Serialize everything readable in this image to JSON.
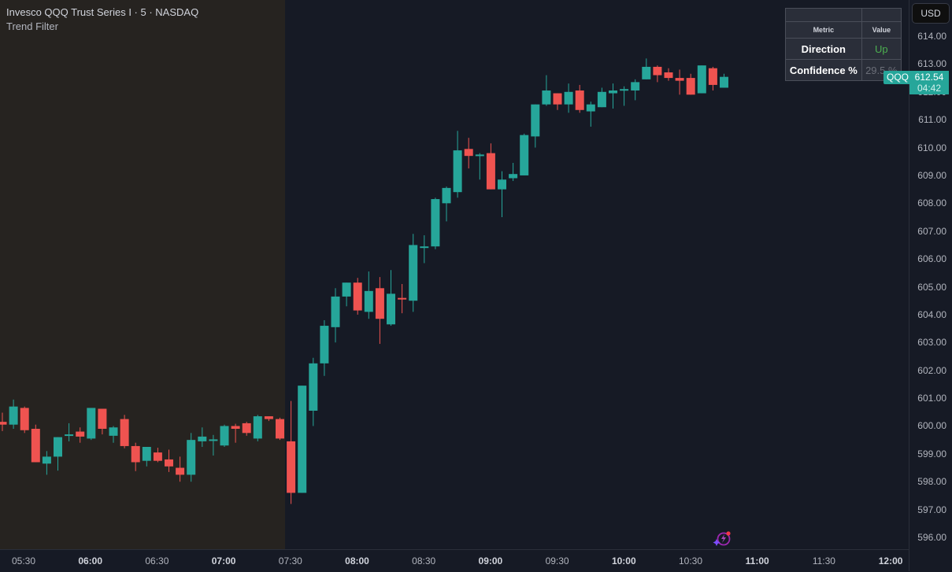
{
  "legend": {
    "title": "Invesco QQQ Trust Series I · 5 · NASDAQ",
    "indicator": "Trend Filter"
  },
  "currency_button": "USD",
  "metric_table": {
    "headers": [
      "Metric",
      "Value"
    ],
    "rows": [
      {
        "metric": "Direction",
        "value": "Up"
      },
      {
        "metric": "Confidence %",
        "value": "29.5 %"
      }
    ]
  },
  "price_tag": {
    "symbol": "QQQ",
    "price": "612.54",
    "countdown": "04:42"
  },
  "colors": {
    "up": "#26a69a",
    "down": "#ef5350",
    "background": "#161a25",
    "premarket": "#262320"
  },
  "icons": {
    "assistant": "ai-lightning-icon"
  },
  "chart_data": {
    "type": "candlestick",
    "title": "Invesco QQQ Trust Series I · 5 · NASDAQ",
    "xlabel": "",
    "ylabel": "USD",
    "ylim": [
      595.6,
      614.9
    ],
    "y_ticks": [
      "614.00",
      "613.00",
      "612.00",
      "611.00",
      "610.00",
      "609.00",
      "608.00",
      "607.00",
      "606.00",
      "605.00",
      "604.00",
      "603.00",
      "602.00",
      "601.00",
      "600.00",
      "599.00",
      "598.00",
      "597.00",
      "596.00"
    ],
    "x_ticks": [
      {
        "label": "05:30",
        "major": false
      },
      {
        "label": "06:00",
        "major": true
      },
      {
        "label": "06:30",
        "major": false
      },
      {
        "label": "07:00",
        "major": true
      },
      {
        "label": "07:30",
        "major": false
      },
      {
        "label": "08:00",
        "major": true
      },
      {
        "label": "08:30",
        "major": false
      },
      {
        "label": "09:00",
        "major": true
      },
      {
        "label": "09:30",
        "major": false
      },
      {
        "label": "10:00",
        "major": true
      },
      {
        "label": "10:30",
        "major": false
      },
      {
        "label": "11:00",
        "major": true
      },
      {
        "label": "11:30",
        "major": false
      },
      {
        "label": "12:00",
        "major": true
      }
    ],
    "grid": false,
    "premarket_shading_until": "07:30",
    "interval": "5m",
    "candles": [
      {
        "t": "05:25",
        "o": 600.15,
        "h": 600.48,
        "l": 599.82,
        "c": 600.05
      },
      {
        "t": "05:30",
        "o": 600.05,
        "h": 600.95,
        "l": 599.9,
        "c": 600.7
      },
      {
        "t": "05:35",
        "o": 600.65,
        "h": 600.7,
        "l": 599.75,
        "c": 599.85
      },
      {
        "t": "05:40",
        "o": 599.9,
        "h": 600.05,
        "l": 598.7,
        "c": 598.7
      },
      {
        "t": "05:45",
        "o": 598.65,
        "h": 599.1,
        "l": 598.25,
        "c": 598.9
      },
      {
        "t": "05:50",
        "o": 598.9,
        "h": 599.6,
        "l": 598.4,
        "c": 599.6
      },
      {
        "t": "05:55",
        "o": 599.65,
        "h": 600.1,
        "l": 599.45,
        "c": 599.7
      },
      {
        "t": "06:00",
        "o": 599.8,
        "h": 599.95,
        "l": 599.4,
        "c": 599.62
      },
      {
        "t": "06:05",
        "o": 599.55,
        "h": 600.65,
        "l": 599.5,
        "c": 600.65
      },
      {
        "t": "06:10",
        "o": 600.62,
        "h": 600.62,
        "l": 599.7,
        "c": 599.9
      },
      {
        "t": "06:15",
        "o": 599.65,
        "h": 600.0,
        "l": 599.4,
        "c": 599.95
      },
      {
        "t": "06:20",
        "o": 600.25,
        "h": 600.4,
        "l": 599.2,
        "c": 599.28
      },
      {
        "t": "06:25",
        "o": 599.28,
        "h": 599.4,
        "l": 598.38,
        "c": 598.7
      },
      {
        "t": "06:30",
        "o": 598.75,
        "h": 599.25,
        "l": 598.55,
        "c": 599.25
      },
      {
        "t": "06:35",
        "o": 599.05,
        "h": 599.22,
        "l": 598.7,
        "c": 598.75
      },
      {
        "t": "06:40",
        "o": 598.8,
        "h": 599.15,
        "l": 598.35,
        "c": 598.55
      },
      {
        "t": "06:45",
        "o": 598.5,
        "h": 598.9,
        "l": 598.0,
        "c": 598.25
      },
      {
        "t": "06:50",
        "o": 598.25,
        "h": 599.75,
        "l": 598.0,
        "c": 599.5
      },
      {
        "t": "06:55",
        "o": 599.45,
        "h": 599.95,
        "l": 599.25,
        "c": 599.62
      },
      {
        "t": "07:00",
        "o": 599.52,
        "h": 599.68,
        "l": 598.94,
        "c": 599.52
      },
      {
        "t": "07:05",
        "o": 599.3,
        "h": 600.05,
        "l": 599.25,
        "c": 600.0
      },
      {
        "t": "07:10",
        "o": 600.0,
        "h": 600.08,
        "l": 599.4,
        "c": 599.9
      },
      {
        "t": "07:15",
        "o": 600.1,
        "h": 600.15,
        "l": 599.65,
        "c": 599.75
      },
      {
        "t": "07:20",
        "o": 599.55,
        "h": 600.4,
        "l": 599.45,
        "c": 600.35
      },
      {
        "t": "07:25",
        "o": 600.35,
        "h": 600.35,
        "l": 600.18,
        "c": 600.25
      },
      {
        "t": "07:30",
        "o": 600.25,
        "h": 600.3,
        "l": 599.5,
        "c": 599.55
      },
      {
        "t": "07:30b",
        "o": 599.45,
        "h": 600.9,
        "l": 597.2,
        "c": 597.6
      },
      {
        "t": "07:35",
        "o": 597.6,
        "h": 601.45,
        "l": 597.6,
        "c": 601.45
      },
      {
        "t": "07:40",
        "o": 600.55,
        "h": 602.45,
        "l": 600.0,
        "c": 602.25
      },
      {
        "t": "07:45",
        "o": 602.25,
        "h": 603.8,
        "l": 601.8,
        "c": 603.6
      },
      {
        "t": "07:50",
        "o": 603.55,
        "h": 604.95,
        "l": 603.0,
        "c": 604.65
      },
      {
        "t": "07:55",
        "o": 604.65,
        "h": 605.15,
        "l": 604.3,
        "c": 605.15
      },
      {
        "t": "08:00",
        "o": 605.15,
        "h": 605.32,
        "l": 604.0,
        "c": 604.15
      },
      {
        "t": "08:05",
        "o": 604.1,
        "h": 605.55,
        "l": 603.85,
        "c": 604.85
      },
      {
        "t": "08:10",
        "o": 604.95,
        "h": 605.35,
        "l": 602.95,
        "c": 603.85
      },
      {
        "t": "08:15",
        "o": 603.65,
        "h": 605.6,
        "l": 603.6,
        "c": 604.75
      },
      {
        "t": "08:20",
        "o": 604.6,
        "h": 605.1,
        "l": 604.05,
        "c": 604.55
      },
      {
        "t": "08:25",
        "o": 604.5,
        "h": 606.9,
        "l": 604.1,
        "c": 606.5
      },
      {
        "t": "08:30",
        "o": 606.45,
        "h": 606.85,
        "l": 605.85,
        "c": 606.45
      },
      {
        "t": "08:35",
        "o": 606.45,
        "h": 608.2,
        "l": 606.35,
        "c": 608.15
      },
      {
        "t": "08:40",
        "o": 608.0,
        "h": 608.6,
        "l": 607.35,
        "c": 608.55
      },
      {
        "t": "08:45",
        "o": 608.4,
        "h": 610.6,
        "l": 608.2,
        "c": 609.9
      },
      {
        "t": "08:50",
        "o": 609.95,
        "h": 610.35,
        "l": 609.25,
        "c": 609.7
      },
      {
        "t": "08:55",
        "o": 609.75,
        "h": 609.8,
        "l": 608.85,
        "c": 609.75
      },
      {
        "t": "09:00",
        "o": 609.8,
        "h": 610.15,
        "l": 608.7,
        "c": 608.5
      },
      {
        "t": "09:05",
        "o": 608.5,
        "h": 609.15,
        "l": 607.5,
        "c": 608.85
      },
      {
        "t": "09:10",
        "o": 608.9,
        "h": 609.45,
        "l": 608.8,
        "c": 609.05
      },
      {
        "t": "09:15",
        "o": 609.0,
        "h": 610.5,
        "l": 609.0,
        "c": 610.45
      },
      {
        "t": "09:20",
        "o": 610.4,
        "h": 611.35,
        "l": 610.0,
        "c": 611.55
      },
      {
        "t": "09:25",
        "o": 611.55,
        "h": 612.6,
        "l": 611.5,
        "c": 612.05
      },
      {
        "t": "09:30",
        "o": 611.95,
        "h": 611.95,
        "l": 611.35,
        "c": 611.55
      },
      {
        "t": "09:35",
        "o": 611.55,
        "h": 612.3,
        "l": 611.25,
        "c": 612.0
      },
      {
        "t": "09:40",
        "o": 612.05,
        "h": 612.25,
        "l": 611.25,
        "c": 611.35
      },
      {
        "t": "09:45",
        "o": 611.3,
        "h": 611.65,
        "l": 610.75,
        "c": 611.55
      },
      {
        "t": "09:50",
        "o": 611.45,
        "h": 612.15,
        "l": 611.45,
        "c": 612.0
      },
      {
        "t": "09:55",
        "o": 611.95,
        "h": 612.3,
        "l": 611.4,
        "c": 612.05
      },
      {
        "t": "10:00",
        "o": 612.1,
        "h": 612.2,
        "l": 611.5,
        "c": 612.1
      },
      {
        "t": "10:05",
        "o": 612.05,
        "h": 612.45,
        "l": 611.7,
        "c": 612.35
      },
      {
        "t": "10:10",
        "o": 612.45,
        "h": 613.2,
        "l": 612.5,
        "c": 612.9
      },
      {
        "t": "10:15",
        "o": 612.9,
        "h": 612.95,
        "l": 612.35,
        "c": 612.6
      },
      {
        "t": "10:20",
        "o": 612.7,
        "h": 612.85,
        "l": 612.4,
        "c": 612.5
      },
      {
        "t": "10:25",
        "o": 612.5,
        "h": 612.8,
        "l": 611.9,
        "c": 612.4
      },
      {
        "t": "10:30",
        "o": 612.5,
        "h": 612.65,
        "l": 611.9,
        "c": 611.9
      },
      {
        "t": "10:35",
        "o": 611.95,
        "h": 612.95,
        "l": 612.0,
        "c": 612.95
      },
      {
        "t": "10:40",
        "o": 612.85,
        "h": 612.9,
        "l": 612.05,
        "c": 612.25
      },
      {
        "t": "10:45",
        "o": 612.15,
        "h": 612.65,
        "l": 612.2,
        "c": 612.54
      }
    ]
  }
}
